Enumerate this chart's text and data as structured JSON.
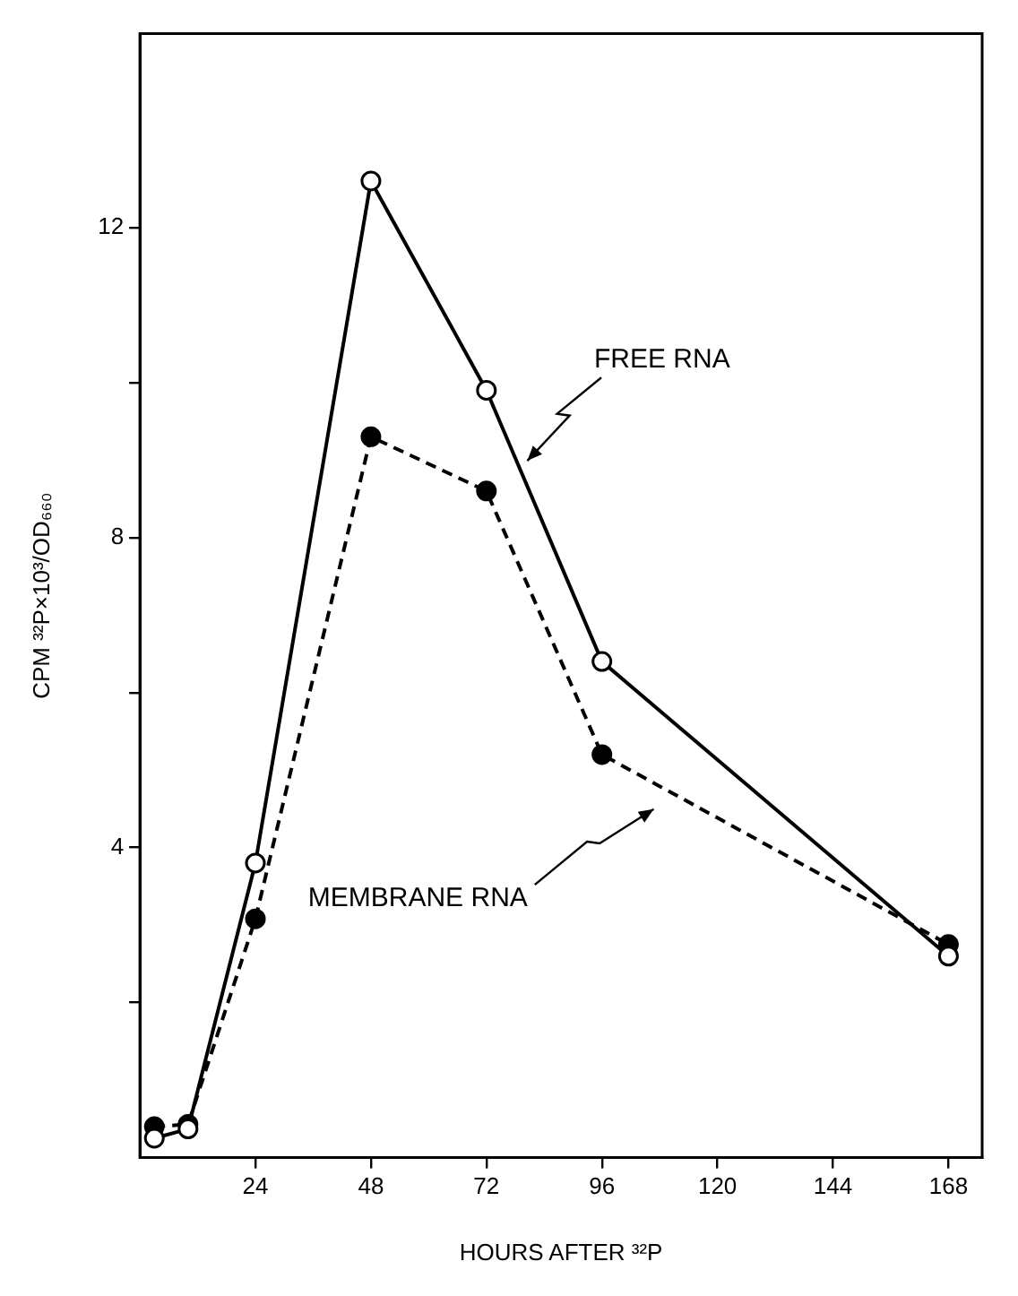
{
  "chart_data": {
    "type": "line",
    "xlabel": "HOURS AFTER ³²P",
    "ylabel": "CPM ³²P×10³/OD₆₆₀",
    "x": [
      3,
      10,
      24,
      48,
      72,
      96,
      168
    ],
    "series": [
      {
        "color": "#000000",
        "line_style": "solid",
        "values": [
          0.25,
          0.37,
          3.8,
          12.6,
          9.9,
          6.4,
          2.6
        ]
      },
      {
        "color": "#000000",
        "line_style": "dashed",
        "values": [
          0.4,
          0.43,
          3.08,
          9.3,
          8.6,
          5.2,
          2.75
        ]
      }
    ],
    "xlim": [
      0,
      175
    ],
    "xticks": [
      24,
      48,
      72,
      96,
      120,
      144,
      168
    ],
    "ylim": [
      0,
      14.5
    ],
    "yticks": [
      {
        "value": 2,
        "label": null
      },
      4,
      {
        "value": 6,
        "label": null
      },
      8,
      {
        "value": 10,
        "label": null
      },
      12
    ],
    "marker": "circle",
    "grid": false,
    "legend": false,
    "annotations": [
      "FREE RNA",
      "MEMBRANE RNA"
    ]
  }
}
